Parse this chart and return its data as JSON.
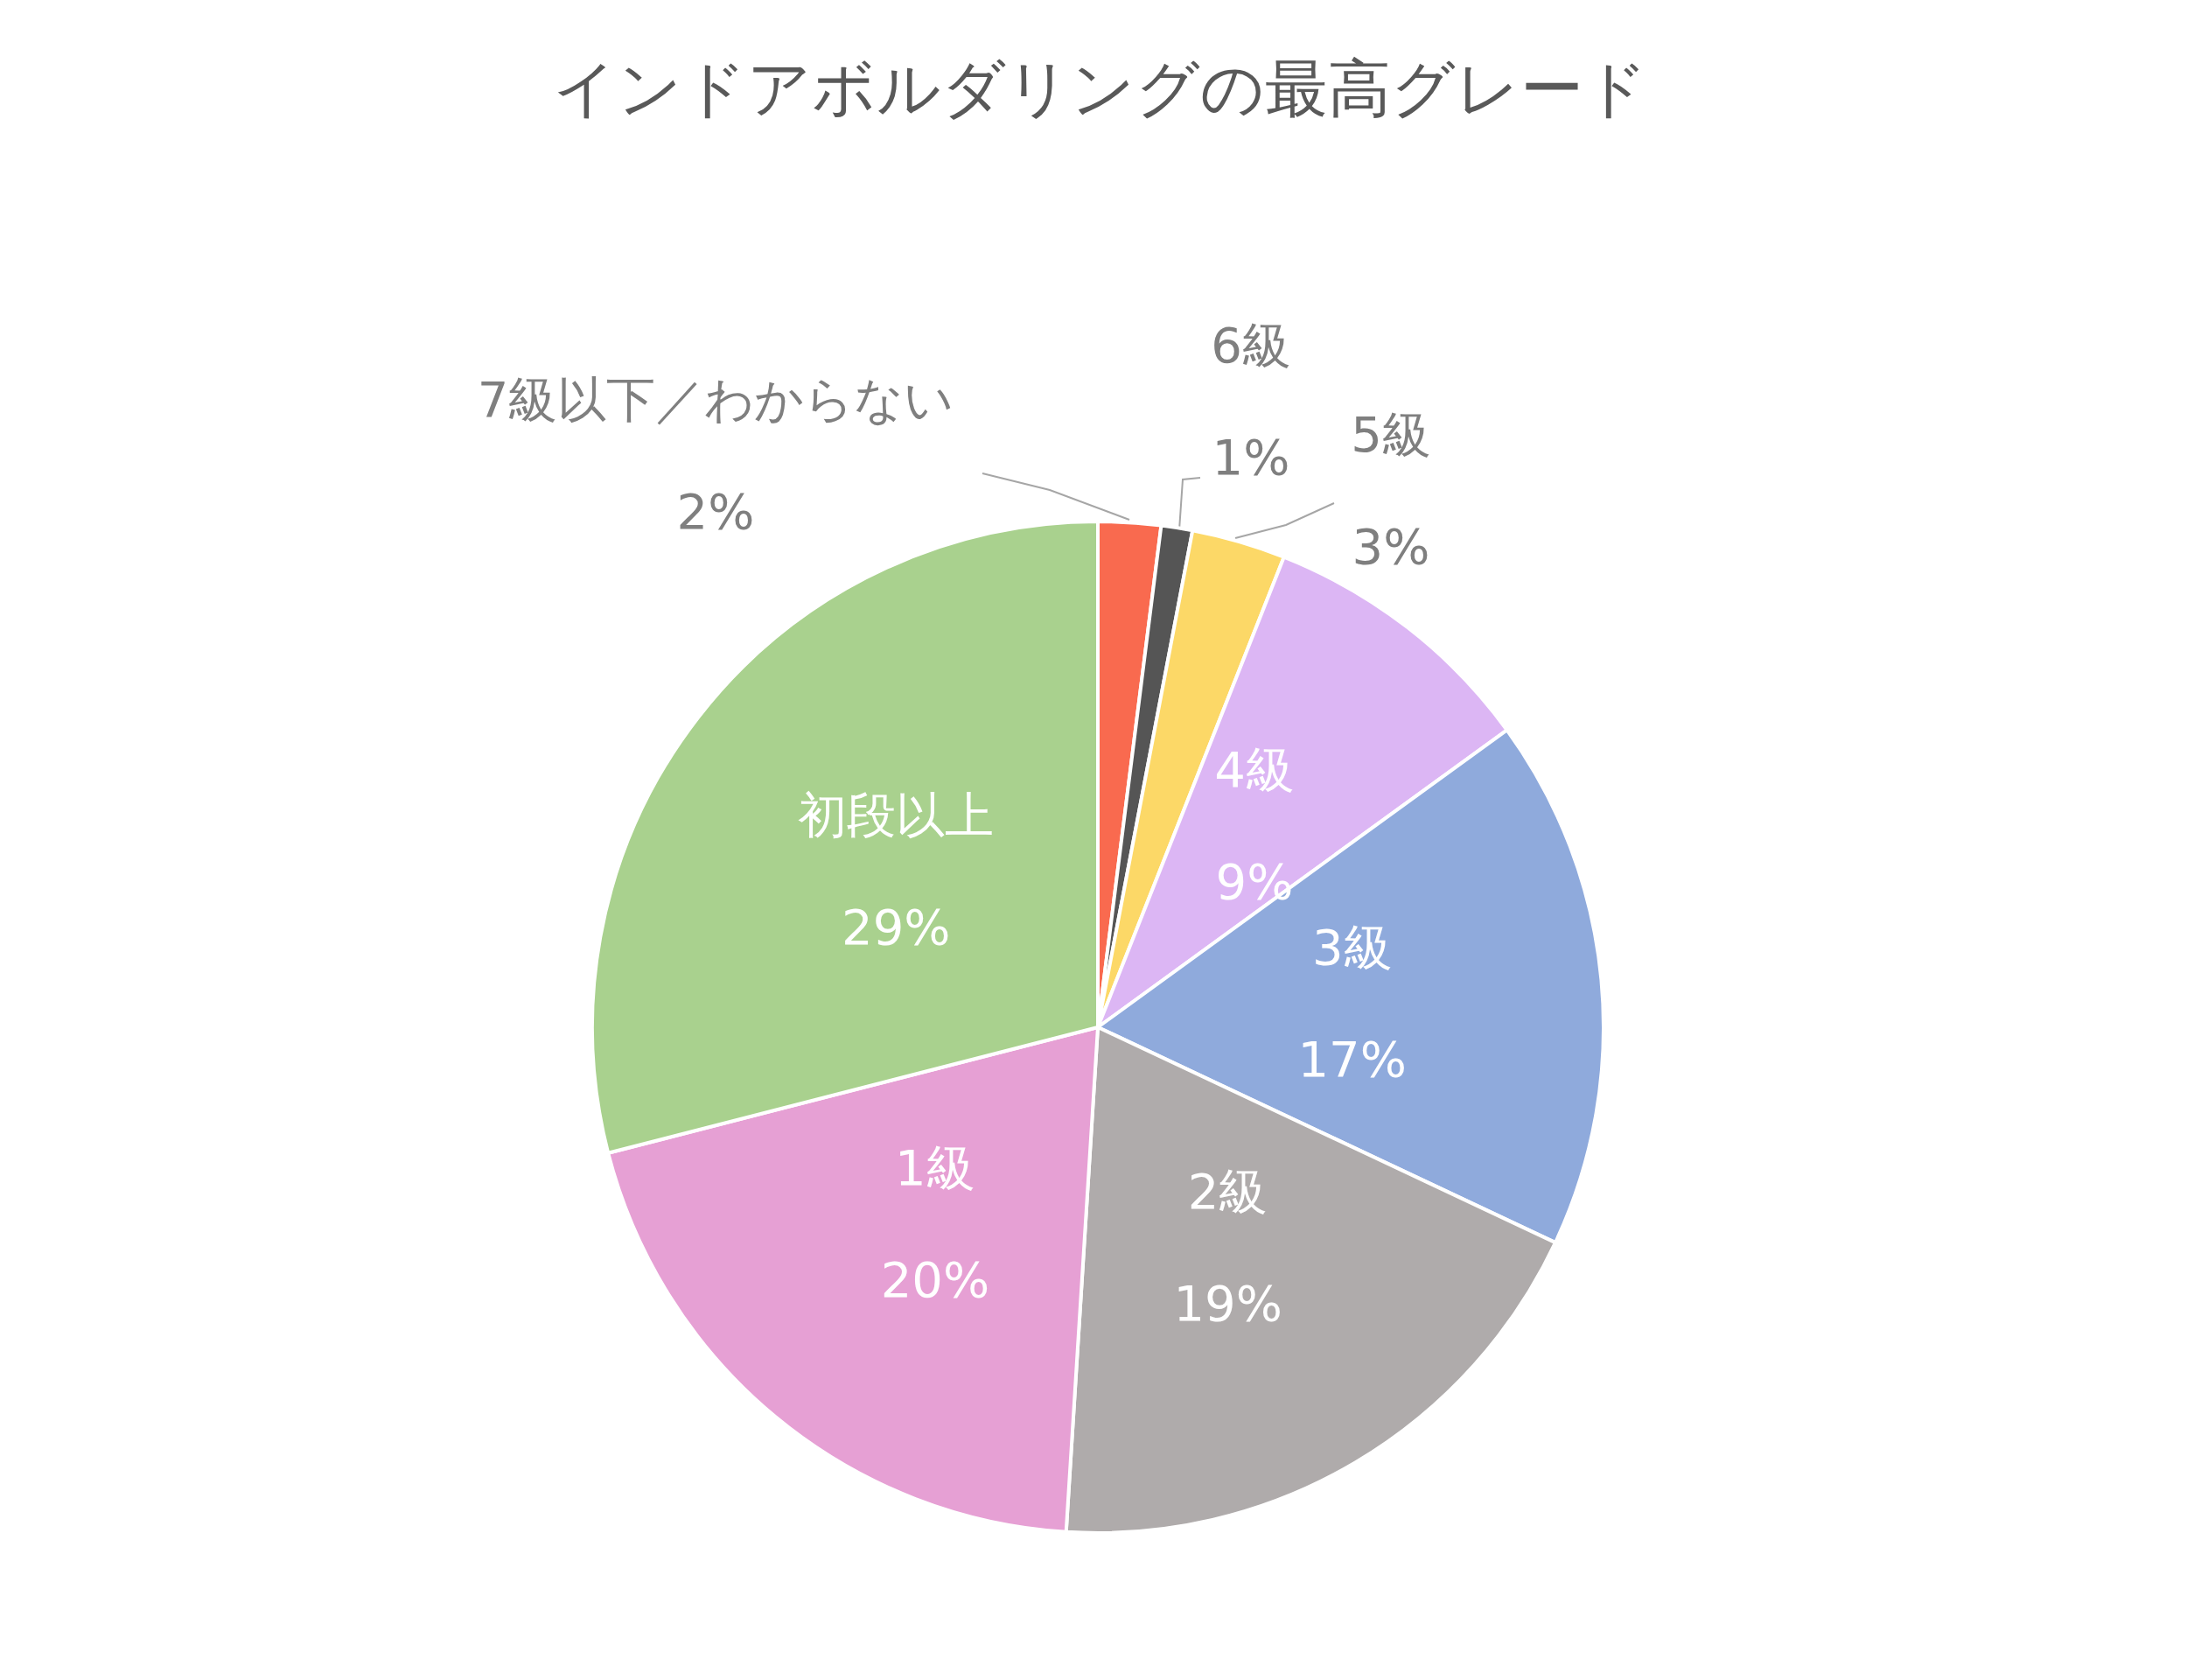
{
  "chart_data": {
    "type": "pie",
    "title": "インドアボルダリングの最高グレード",
    "categories": [
      "7級以下／わからない",
      "6級",
      "5級",
      "4級",
      "3級",
      "2級",
      "1級",
      "初段以上"
    ],
    "values": [
      2,
      1,
      3,
      9,
      17,
      19,
      20,
      29
    ],
    "value_labels": [
      "2%",
      "1%",
      "3%",
      "9%",
      "17%",
      "19%",
      "20%",
      "29%"
    ],
    "colors": [
      "#f96a4f",
      "#555555",
      "#fcd867",
      "#dcb6f4",
      "#8faadc",
      "#afabab",
      "#e6a0d4",
      "#a9d18e"
    ],
    "legend": false
  }
}
